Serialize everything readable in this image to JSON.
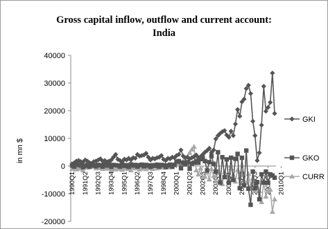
{
  "chart_data": {
    "type": "line",
    "title_line1": "Gross capital inflow, outflow and current account:",
    "title_line2": "India",
    "ylabel": "in mn $",
    "xlabel": "",
    "ylim": [
      -20000,
      40000
    ],
    "yticks": [
      "40000",
      "30000",
      "20000",
      "10000",
      "0",
      "-10000",
      "-20000"
    ],
    "ytick_values": [
      40000,
      30000,
      20000,
      10000,
      0,
      -10000,
      -20000
    ],
    "grid": false,
    "legend_position": "right",
    "x_start": "1990Q1",
    "x_tick_labels": [
      "1990Q1",
      "1991Q2",
      "1992Q3",
      "1993Q4",
      "1995Q1",
      "1996Q2",
      "1997Q3",
      "1998Q4",
      "2000Q1",
      "2001Q2",
      "2002Q3",
      "2003Q4",
      "2005Q1",
      "2006Q2",
      "2007Q3",
      "2008Q4",
      "2010Q1"
    ],
    "series": [
      {
        "name": "GKI",
        "color": "#555555",
        "marker": "diamond",
        "values": [
          800,
          1200,
          1800,
          2000,
          1600,
          1400,
          2200,
          1800,
          1200,
          1000,
          1600,
          1800,
          2200,
          2600,
          1800,
          2000,
          1500,
          1800,
          2200,
          3200,
          4200,
          2400,
          2000,
          1600,
          2500,
          2200,
          2800,
          2200,
          3000,
          2800,
          4200,
          3600,
          3800,
          4000,
          4600,
          3200,
          2200,
          2800,
          2600,
          3000,
          3200,
          3800,
          2400,
          2000,
          2800,
          2600,
          3200,
          3000,
          3800,
          4200,
          5800,
          3600,
          3000,
          3200,
          2600,
          3000,
          3400,
          4000,
          3000,
          3400,
          4200,
          5000,
          5600,
          6400,
          4800,
          5800,
          9800,
          11000,
          11800,
          12400,
          12800,
          11200,
          10400,
          12600,
          11000,
          15200,
          20400,
          18000,
          23200,
          24200,
          28000,
          29200,
          26200,
          16200,
          11000,
          2000,
          4800,
          14800,
          28800,
          19800,
          21200,
          23000,
          33600,
          19000
        ]
      },
      {
        "name": "GKO",
        "color": "#555555",
        "marker": "square",
        "values": [
          200,
          -200,
          600,
          400,
          200,
          -400,
          100,
          400,
          -200,
          600,
          200,
          -100,
          400,
          300,
          -200,
          500,
          200,
          600,
          -300,
          400,
          300,
          200,
          -200,
          500,
          100,
          300,
          -300,
          600,
          200,
          400,
          -200,
          300,
          500,
          -100,
          400,
          200,
          -300,
          300,
          100,
          500,
          -200,
          400,
          300,
          -400,
          200,
          500,
          -300,
          400,
          1600,
          1800,
          -800,
          1200,
          600,
          1400,
          -1000,
          900,
          1200,
          1800,
          1200,
          2500,
          3000,
          1800,
          -1600,
          1400,
          3600,
          800,
          -2000,
          5000,
          -6000,
          3200,
          -4000,
          2400,
          -6000,
          3000,
          -5000,
          2600,
          4400,
          -8000,
          3000,
          -7000,
          5600,
          -8200,
          -14000,
          -2000,
          -8000,
          -5800,
          -12000,
          -3000,
          -6000,
          -2000,
          -6000,
          -3000,
          -3400,
          -4200
        ]
      },
      {
        "name": "CURR",
        "color": "#a8a8a8",
        "marker": "triangle",
        "values": [
          -1000,
          -800,
          -1200,
          -600,
          -900,
          -1500,
          -200,
          -600,
          -400,
          -200,
          100,
          -800,
          -600,
          -700,
          -1000,
          -400,
          -900,
          -800,
          -1500,
          -1100,
          -1200,
          -1000,
          -900,
          -1300,
          -900,
          -800,
          -1000,
          -1500,
          -500,
          -800,
          -600,
          -1200,
          -900,
          -300,
          -1100,
          -700,
          -500,
          -1000,
          -200,
          -800,
          -400,
          -600,
          300,
          200,
          -500,
          200,
          400,
          800,
          1000,
          600,
          1200,
          1800,
          2200,
          3400,
          4800,
          6000,
          7000,
          -1500,
          -3000,
          -800,
          -4000,
          -3800,
          -2200,
          -4800,
          -1000,
          -3600,
          -5500,
          -2000,
          -4600,
          -6500,
          -2200,
          -3800,
          -5000,
          -800,
          -3200,
          -5600,
          -1400,
          -4000,
          -2400,
          -5500,
          -6000,
          -2800,
          -7000,
          -4500,
          -8800,
          -5800,
          -9000,
          -13000,
          -6000,
          -11000,
          -9000,
          -8500,
          -16500,
          -12000
        ]
      }
    ]
  }
}
